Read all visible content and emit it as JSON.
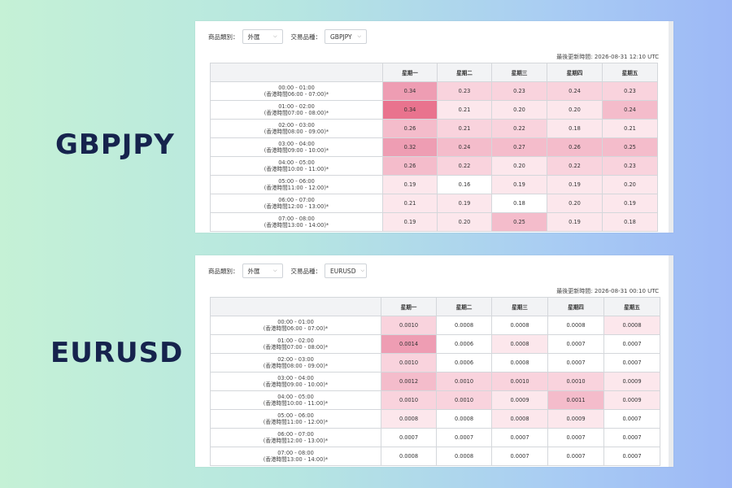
{
  "labels": {
    "top": "GBPJPY",
    "bottom": "EURUSD"
  },
  "panels": [
    {
      "filter_category_label": "商品類別：",
      "filter_category_value": "外匯",
      "filter_product_label": "交易品種：",
      "filter_product_value": "GBPJPY",
      "updated_text": "最後更新時間: 2026-08-31 12:10 UTC",
      "days": [
        "星期一",
        "星期二",
        "星期三",
        "星期四",
        "星期五"
      ],
      "rows": [
        {
          "time": "00:00 - 01:00",
          "hk": "(香港時間06:00 - 07:00)*",
          "values": [
            "0.34",
            "0.23",
            "0.23",
            "0.24",
            "0.23"
          ],
          "levels": [
            4,
            2,
            2,
            2,
            2
          ]
        },
        {
          "time": "01:00 - 02:00",
          "hk": "(香港時間07:00 - 08:00)*",
          "values": [
            "0.34",
            "0.21",
            "0.20",
            "0.20",
            "0.24"
          ],
          "levels": [
            5,
            1,
            1,
            1,
            3
          ]
        },
        {
          "time": "02:00 - 03:00",
          "hk": "(香港時間08:00 - 09:00)*",
          "values": [
            "0.26",
            "0.21",
            "0.22",
            "0.18",
            "0.21"
          ],
          "levels": [
            3,
            2,
            2,
            1,
            1
          ]
        },
        {
          "time": "03:00 - 04:00",
          "hk": "(香港時間09:00 - 10:00)*",
          "values": [
            "0.32",
            "0.24",
            "0.27",
            "0.26",
            "0.25"
          ],
          "levels": [
            4,
            3,
            3,
            3,
            3
          ]
        },
        {
          "time": "04:00 - 05:00",
          "hk": "(香港時間10:00 - 11:00)*",
          "values": [
            "0.26",
            "0.22",
            "0.20",
            "0.22",
            "0.23"
          ],
          "levels": [
            3,
            2,
            1,
            2,
            2
          ]
        },
        {
          "time": "05:00 - 06:00",
          "hk": "(香港時間11:00 - 12:00)*",
          "values": [
            "0.19",
            "0.16",
            "0.19",
            "0.19",
            "0.20"
          ],
          "levels": [
            1,
            0,
            1,
            1,
            1
          ]
        },
        {
          "time": "06:00 - 07:00",
          "hk": "(香港時間12:00 - 13:00)*",
          "values": [
            "0.21",
            "0.19",
            "0.18",
            "0.20",
            "0.19"
          ],
          "levels": [
            1,
            1,
            0,
            1,
            1
          ]
        },
        {
          "time": "07:00 - 08:00",
          "hk": "(香港時間13:00 - 14:00)*",
          "values": [
            "0.19",
            "0.20",
            "0.25",
            "0.19",
            "0.18"
          ],
          "levels": [
            1,
            1,
            3,
            1,
            1
          ]
        }
      ]
    },
    {
      "filter_category_label": "商品類別：",
      "filter_category_value": "外匯",
      "filter_product_label": "交易品種：",
      "filter_product_value": "EURUSD",
      "updated_text": "最後更新時間: 2026-08-31 00:10 UTC",
      "days": [
        "星期一",
        "星期二",
        "星期三",
        "星期四",
        "星期五"
      ],
      "rows": [
        {
          "time": "00:00 - 01:00",
          "hk": "(香港時間06:00 - 07:00)*",
          "values": [
            "0.0010",
            "0.0008",
            "0.0008",
            "0.0008",
            "0.0008"
          ],
          "levels": [
            2,
            0,
            0,
            0,
            1
          ]
        },
        {
          "time": "01:00 - 02:00",
          "hk": "(香港時間07:00 - 08:00)*",
          "values": [
            "0.0014",
            "0.0006",
            "0.0008",
            "0.0007",
            "0.0007"
          ],
          "levels": [
            4,
            0,
            1,
            0,
            0
          ]
        },
        {
          "time": "02:00 - 03:00",
          "hk": "(香港時間08:00 - 09:00)*",
          "values": [
            "0.0010",
            "0.0006",
            "0.0008",
            "0.0007",
            "0.0007"
          ],
          "levels": [
            2,
            0,
            0,
            0,
            0
          ]
        },
        {
          "time": "03:00 - 04:00",
          "hk": "(香港時間09:00 - 10:00)*",
          "values": [
            "0.0012",
            "0.0010",
            "0.0010",
            "0.0010",
            "0.0009"
          ],
          "levels": [
            3,
            2,
            2,
            2,
            1
          ]
        },
        {
          "time": "04:00 - 05:00",
          "hk": "(香港時間10:00 - 11:00)*",
          "values": [
            "0.0010",
            "0.0010",
            "0.0009",
            "0.0011",
            "0.0009"
          ],
          "levels": [
            2,
            2,
            1,
            3,
            1
          ]
        },
        {
          "time": "05:00 - 06:00",
          "hk": "(香港時間11:00 - 12:00)*",
          "values": [
            "0.0008",
            "0.0008",
            "0.0008",
            "0.0009",
            "0.0007"
          ],
          "levels": [
            1,
            0,
            1,
            1,
            0
          ]
        },
        {
          "time": "06:00 - 07:00",
          "hk": "(香港時間12:00 - 13:00)*",
          "values": [
            "0.0007",
            "0.0007",
            "0.0007",
            "0.0007",
            "0.0007"
          ],
          "levels": [
            0,
            0,
            0,
            0,
            0
          ]
        },
        {
          "time": "07:00 - 08:00",
          "hk": "(香港時間13:00 - 14:00)*",
          "values": [
            "0.0008",
            "0.0008",
            "0.0007",
            "0.0007",
            "0.0007"
          ],
          "levels": [
            0,
            0,
            0,
            0,
            0
          ]
        }
      ]
    }
  ]
}
